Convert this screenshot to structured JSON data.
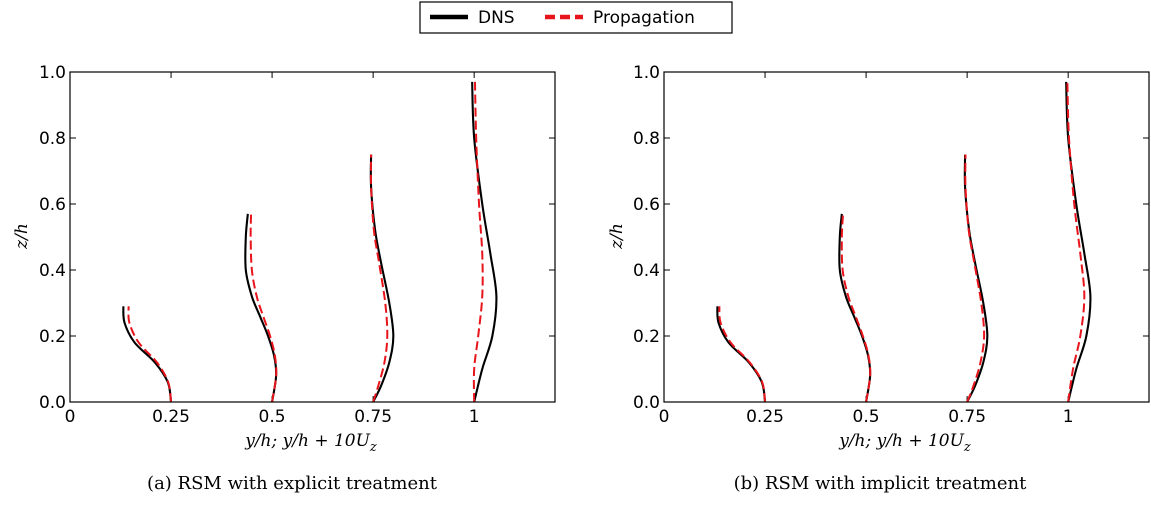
{
  "legend": {
    "placement": "top-center",
    "entries": [
      {
        "label": "DNS",
        "color": "#000000",
        "style": "solid"
      },
      {
        "label": "Propagation",
        "color": "#e8141b",
        "style": "dashed"
      }
    ]
  },
  "chart_data": [
    {
      "type": "line",
      "caption": "(a) RSM with explicit treatment",
      "xlabel": "y/h;    y/h + 10U",
      "xlabel_sub": "z",
      "ylabel": "z/h",
      "xlim": [
        0,
        1.2
      ],
      "ylim": [
        0,
        1.0
      ],
      "xticks": [
        {
          "v": 0,
          "label": "0"
        },
        {
          "v": 0.25,
          "label": "0.25"
        },
        {
          "v": 0.5,
          "label": "0.5"
        },
        {
          "v": 0.75,
          "label": "0.75"
        },
        {
          "v": 1.0,
          "label": "1"
        }
      ],
      "yticks": [
        {
          "v": 0,
          "label": "0.0"
        },
        {
          "v": 0.2,
          "label": "0.2"
        },
        {
          "v": 0.4,
          "label": "0.4"
        },
        {
          "v": 0.6,
          "label": "0.6"
        },
        {
          "v": 0.8,
          "label": "0.8"
        },
        {
          "v": 1.0,
          "label": "1.0"
        }
      ],
      "series": [
        {
          "name": "DNS",
          "profiles": [
            {
              "x": [
                0.25,
                0.242,
                0.21,
                0.16,
                0.135,
                0.132
              ],
              "y": [
                0,
                0.06,
                0.12,
                0.18,
                0.24,
                0.29
              ]
            },
            {
              "x": [
                0.5,
                0.51,
                0.505,
                0.49,
                0.47,
                0.45,
                0.435,
                0.435,
                0.44
              ],
              "y": [
                0,
                0.08,
                0.14,
                0.2,
                0.26,
                0.32,
                0.4,
                0.5,
                0.57
              ]
            },
            {
              "x": [
                0.75,
                0.77,
                0.79,
                0.8,
                0.79,
                0.77,
                0.755,
                0.745,
                0.745
              ],
              "y": [
                0,
                0.05,
                0.12,
                0.2,
                0.3,
                0.42,
                0.52,
                0.65,
                0.75
              ]
            },
            {
              "x": [
                1.0,
                1.02,
                1.045,
                1.055,
                1.04,
                1.02,
                1.0,
                0.995
              ],
              "y": [
                0,
                0.1,
                0.2,
                0.32,
                0.45,
                0.6,
                0.8,
                0.97
              ]
            }
          ]
        },
        {
          "name": "Propagation",
          "profiles": [
            {
              "x": [
                0.25,
                0.243,
                0.215,
                0.17,
                0.147,
                0.145
              ],
              "y": [
                0,
                0.06,
                0.12,
                0.18,
                0.24,
                0.29
              ]
            },
            {
              "x": [
                0.5,
                0.51,
                0.507,
                0.495,
                0.478,
                0.462,
                0.45,
                0.447,
                0.448
              ],
              "y": [
                0,
                0.08,
                0.14,
                0.2,
                0.26,
                0.32,
                0.4,
                0.5,
                0.57
              ]
            },
            {
              "x": [
                0.75,
                0.763,
                0.778,
                0.785,
                0.78,
                0.765,
                0.752,
                0.745,
                0.745
              ],
              "y": [
                0,
                0.05,
                0.12,
                0.2,
                0.3,
                0.42,
                0.52,
                0.65,
                0.75
              ]
            },
            {
              "x": [
                1.0,
                1.0,
                1.01,
                1.02,
                1.02,
                1.012,
                1.005,
                1.002
              ],
              "y": [
                0,
                0.1,
                0.2,
                0.32,
                0.45,
                0.6,
                0.8,
                0.97
              ]
            }
          ]
        }
      ]
    },
    {
      "type": "line",
      "caption": "(b) RSM with implicit treatment",
      "xlabel": "y/h;    y/h + 10U",
      "xlabel_sub": "z",
      "ylabel": "z/h",
      "xlim": [
        0,
        1.2
      ],
      "ylim": [
        0,
        1.0
      ],
      "xticks": [
        {
          "v": 0,
          "label": "0"
        },
        {
          "v": 0.25,
          "label": "0.25"
        },
        {
          "v": 0.5,
          "label": "0.5"
        },
        {
          "v": 0.75,
          "label": "0.75"
        },
        {
          "v": 1.0,
          "label": "1"
        }
      ],
      "yticks": [
        {
          "v": 0,
          "label": "0.0"
        },
        {
          "v": 0.2,
          "label": "0.2"
        },
        {
          "v": 0.4,
          "label": "0.4"
        },
        {
          "v": 0.6,
          "label": "0.6"
        },
        {
          "v": 0.8,
          "label": "0.8"
        },
        {
          "v": 1.0,
          "label": "1.0"
        }
      ],
      "series": [
        {
          "name": "DNS",
          "profiles": [
            {
              "x": [
                0.25,
                0.242,
                0.21,
                0.16,
                0.135,
                0.132
              ],
              "y": [
                0,
                0.06,
                0.12,
                0.18,
                0.24,
                0.29
              ]
            },
            {
              "x": [
                0.5,
                0.51,
                0.505,
                0.49,
                0.47,
                0.45,
                0.435,
                0.435,
                0.44
              ],
              "y": [
                0,
                0.08,
                0.14,
                0.2,
                0.26,
                0.32,
                0.4,
                0.5,
                0.57
              ]
            },
            {
              "x": [
                0.75,
                0.77,
                0.79,
                0.8,
                0.79,
                0.77,
                0.755,
                0.745,
                0.745
              ],
              "y": [
                0,
                0.05,
                0.12,
                0.2,
                0.3,
                0.42,
                0.52,
                0.65,
                0.75
              ]
            },
            {
              "x": [
                1.0,
                1.02,
                1.045,
                1.055,
                1.04,
                1.02,
                1.0,
                0.995
              ],
              "y": [
                0,
                0.1,
                0.2,
                0.32,
                0.45,
                0.6,
                0.8,
                0.97
              ]
            }
          ]
        },
        {
          "name": "Propagation",
          "profiles": [
            {
              "x": [
                0.25,
                0.243,
                0.212,
                0.165,
                0.14,
                0.137
              ],
              "y": [
                0,
                0.06,
                0.12,
                0.18,
                0.24,
                0.29
              ]
            },
            {
              "x": [
                0.5,
                0.51,
                0.506,
                0.492,
                0.474,
                0.456,
                0.442,
                0.44,
                0.443
              ],
              "y": [
                0,
                0.08,
                0.14,
                0.2,
                0.26,
                0.32,
                0.4,
                0.5,
                0.57
              ]
            },
            {
              "x": [
                0.75,
                0.766,
                0.783,
                0.792,
                0.785,
                0.768,
                0.754,
                0.746,
                0.746
              ],
              "y": [
                0,
                0.05,
                0.12,
                0.2,
                0.3,
                0.42,
                0.52,
                0.65,
                0.75
              ]
            },
            {
              "x": [
                1.0,
                1.012,
                1.03,
                1.04,
                1.03,
                1.015,
                1.002,
                0.998
              ],
              "y": [
                0,
                0.1,
                0.2,
                0.32,
                0.45,
                0.6,
                0.8,
                0.97
              ]
            }
          ]
        }
      ]
    }
  ]
}
